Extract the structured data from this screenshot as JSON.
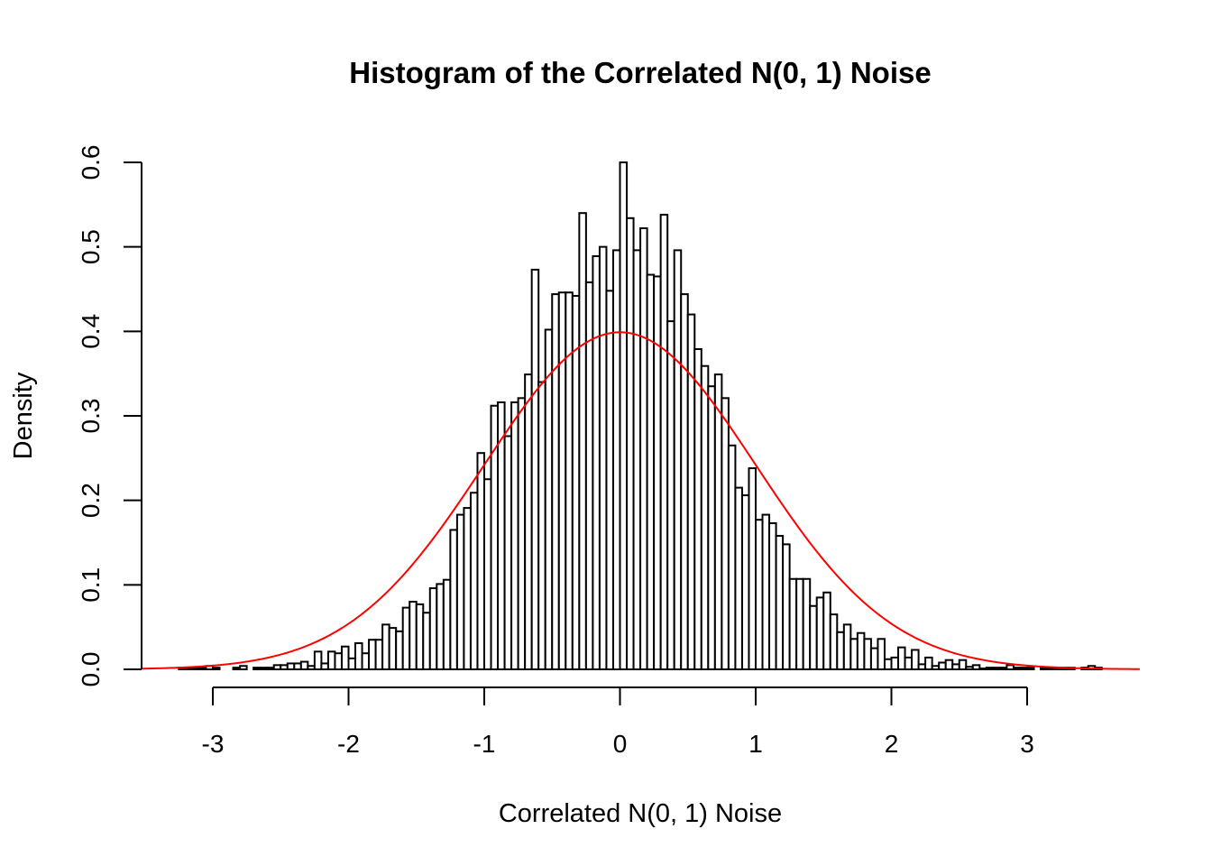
{
  "chart_data": {
    "type": "bar",
    "title": "Histogram of the Correlated N(0, 1) Noise",
    "xlabel": "Correlated N(0, 1) Noise",
    "ylabel": "Density",
    "x_ticks": [
      "-3",
      "-2",
      "-1",
      "0",
      "1",
      "2",
      "3"
    ],
    "y_ticks": [
      "0.0",
      "0.1",
      "0.2",
      "0.3",
      "0.4",
      "0.5",
      "0.6"
    ],
    "xlim": [
      -3.53,
      3.83
    ],
    "ylim": [
      0,
      0.6
    ],
    "grid": false,
    "bin_start": -3.25,
    "bin_width": 0.05,
    "densities": [
      0.002,
      0.002,
      0.002,
      0.002,
      0.004,
      0.002,
      0,
      0,
      0.002,
      0.004,
      0,
      0.002,
      0.002,
      0.002,
      0.005,
      0.005,
      0.007,
      0.007,
      0.009,
      0.004,
      0.021,
      0.007,
      0.021,
      0.019,
      0.027,
      0.013,
      0.031,
      0.019,
      0.035,
      0.035,
      0.053,
      0.049,
      0.045,
      0.073,
      0.08,
      0.077,
      0.067,
      0.096,
      0.101,
      0.106,
      0.165,
      0.183,
      0.191,
      0.209,
      0.256,
      0.225,
      0.312,
      0.316,
      0.276,
      0.316,
      0.321,
      0.349,
      0.473,
      0.34,
      0.402,
      0.444,
      0.446,
      0.446,
      0.442,
      0.54,
      0.458,
      0.489,
      0.5,
      0.448,
      0.496,
      0.6,
      0.534,
      0.496,
      0.522,
      0.467,
      0.465,
      0.538,
      0.412,
      0.496,
      0.444,
      0.42,
      0.379,
      0.359,
      0.335,
      0.349,
      0.321,
      0.265,
      0.215,
      0.206,
      0.238,
      0.177,
      0.183,
      0.173,
      0.158,
      0.148,
      0.107,
      0.107,
      0.107,
      0.075,
      0.085,
      0.091,
      0.065,
      0.044,
      0.053,
      0.036,
      0.043,
      0.036,
      0.025,
      0.036,
      0.012,
      0.014,
      0.026,
      0.014,
      0.023,
      0.006,
      0.014,
      0.004,
      0.008,
      0.011,
      0.006,
      0.011,
      0.003,
      0.005,
      0.001,
      0.002,
      0.002,
      0.002,
      0.005,
      0.002,
      0.002,
      0.002,
      0,
      0.002,
      0.002,
      0.002,
      0.002,
      0.002,
      0,
      0.002,
      0.004,
      0.002
    ],
    "bar_fill": "#ffffff",
    "bar_stroke": "#000000",
    "overlay_curve": {
      "function": "standard normal density N(0,1)",
      "color": "#ff0000",
      "range": [
        -3.53,
        3.83
      ]
    }
  }
}
